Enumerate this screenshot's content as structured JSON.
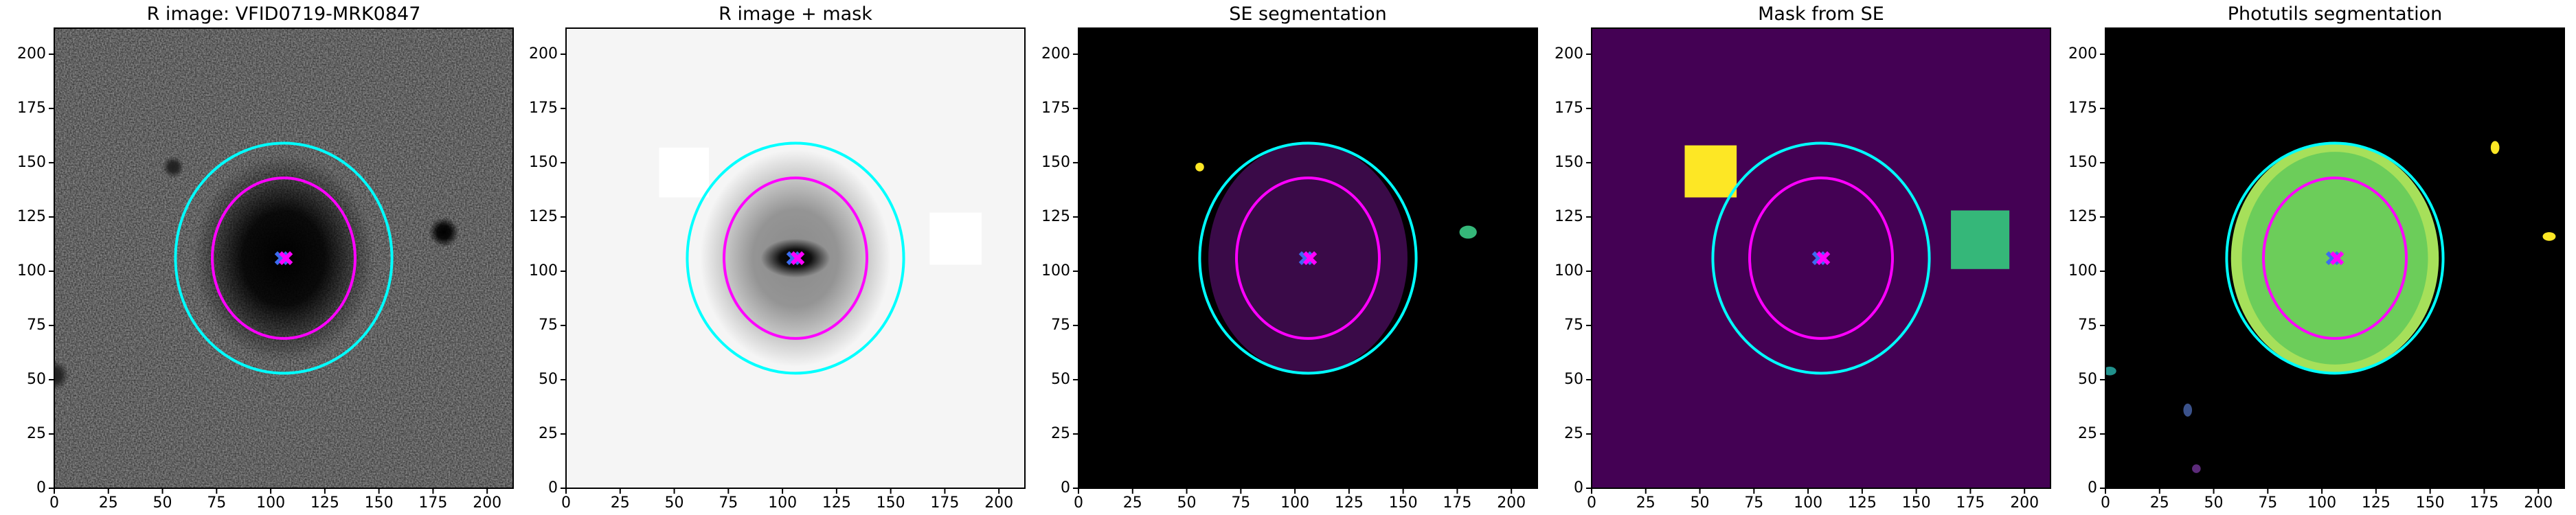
{
  "chart_data": [
    {
      "type": "image",
      "title": "R image: VFID0719-MRK0847",
      "background": "#8c8c8c",
      "noise": true,
      "xlim": [
        0,
        212
      ],
      "ylim": [
        0,
        212
      ],
      "xticks": [
        0,
        25,
        50,
        75,
        100,
        125,
        150,
        175,
        200
      ],
      "yticks": [
        0,
        25,
        50,
        75,
        100,
        125,
        150,
        175,
        200
      ],
      "regions": [
        {
          "shape": "ellipse",
          "soft": true,
          "color": "#000000",
          "cx": 106,
          "cy": 106,
          "rx": 42,
          "ry": 48
        },
        {
          "shape": "ellipse",
          "soft": true,
          "color": "#000000",
          "cx": 180,
          "cy": 118,
          "rx": 7,
          "ry": 7
        },
        {
          "shape": "ellipse",
          "soft": true,
          "color": "#202020",
          "cx": 55,
          "cy": 148,
          "rx": 5,
          "ry": 5
        },
        {
          "shape": "ellipse",
          "soft": true,
          "color": "#202020",
          "cx": 0,
          "cy": 52,
          "rx": 7,
          "ry": 7
        }
      ],
      "ellipses": [
        {
          "color": "#00ffff",
          "cx": 106,
          "cy": 106,
          "rx": 50,
          "ry": 53
        },
        {
          "color": "#ff00ff",
          "cx": 106,
          "cy": 106,
          "rx": 33,
          "ry": 37
        }
      ],
      "markers": [
        {
          "color": "#3b6cf0",
          "x": 105,
          "y": 106
        },
        {
          "color": "#ff00ff",
          "x": 107,
          "y": 106
        }
      ]
    },
    {
      "type": "image",
      "title": "R image + mask",
      "background": "#f5f5f5",
      "noise": false,
      "xlim": [
        0,
        212
      ],
      "ylim": [
        0,
        212
      ],
      "xticks": [
        0,
        25,
        50,
        75,
        100,
        125,
        150,
        175,
        200
      ],
      "yticks": [
        0,
        25,
        50,
        75,
        100,
        125,
        150,
        175,
        200
      ],
      "regions": [
        {
          "shape": "ellipse",
          "soft": true,
          "color": "#8a8a8a",
          "cx": 106,
          "cy": 106,
          "rx": 44,
          "ry": 50
        },
        {
          "shape": "ellipse",
          "soft": true,
          "color": "#000000",
          "cx": 106,
          "cy": 106,
          "rx": 16,
          "ry": 9
        },
        {
          "shape": "rect",
          "soft": false,
          "color": "#ffffff",
          "x0": 43,
          "x1": 66,
          "y0": 134,
          "y1": 157
        },
        {
          "shape": "rect",
          "soft": false,
          "color": "#ffffff",
          "x0": 168,
          "x1": 192,
          "y0": 103,
          "y1": 127
        }
      ],
      "ellipses": [
        {
          "color": "#00ffff",
          "cx": 106,
          "cy": 106,
          "rx": 50,
          "ry": 53
        },
        {
          "color": "#ff00ff",
          "cx": 106,
          "cy": 106,
          "rx": 33,
          "ry": 37
        }
      ],
      "markers": [
        {
          "color": "#3b6cf0",
          "x": 105,
          "y": 106
        },
        {
          "color": "#ff00ff",
          "x": 107,
          "y": 106
        }
      ]
    },
    {
      "type": "image",
      "title": "SE segmentation",
      "background": "#000000",
      "noise": false,
      "xlim": [
        0,
        212
      ],
      "ylim": [
        0,
        212
      ],
      "xticks": [
        0,
        25,
        50,
        75,
        100,
        125,
        150,
        175,
        200
      ],
      "yticks": [
        0,
        25,
        50,
        75,
        100,
        125,
        150,
        175,
        200
      ],
      "regions": [
        {
          "shape": "ellipse",
          "soft": false,
          "color": "#3a0a48",
          "cx": 106,
          "cy": 106,
          "rx": 46,
          "ry": 53
        },
        {
          "shape": "ellipse",
          "soft": false,
          "color": "#fde725",
          "cx": 56,
          "cy": 148,
          "rx": 2,
          "ry": 2
        },
        {
          "shape": "ellipse",
          "soft": false,
          "color": "#35b779",
          "cx": 180,
          "cy": 118,
          "rx": 4,
          "ry": 3
        }
      ],
      "ellipses": [
        {
          "color": "#00ffff",
          "cx": 106,
          "cy": 106,
          "rx": 50,
          "ry": 53
        },
        {
          "color": "#ff00ff",
          "cx": 106,
          "cy": 106,
          "rx": 33,
          "ry": 37
        }
      ],
      "markers": [
        {
          "color": "#3b6cf0",
          "x": 105,
          "y": 106
        },
        {
          "color": "#ff00ff",
          "x": 107,
          "y": 106
        }
      ]
    },
    {
      "type": "image",
      "title": "Mask from SE",
      "background": "#440154",
      "noise": false,
      "xlim": [
        0,
        212
      ],
      "ylim": [
        0,
        212
      ],
      "xticks": [
        0,
        25,
        50,
        75,
        100,
        125,
        150,
        175,
        200
      ],
      "yticks": [
        0,
        25,
        50,
        75,
        100,
        125,
        150,
        175,
        200
      ],
      "regions": [
        {
          "shape": "rect",
          "soft": false,
          "color": "#fde725",
          "x0": 43,
          "x1": 67,
          "y0": 134,
          "y1": 158
        },
        {
          "shape": "rect",
          "soft": false,
          "color": "#35b779",
          "x0": 166,
          "x1": 193,
          "y0": 101,
          "y1": 128
        }
      ],
      "ellipses": [
        {
          "color": "#00ffff",
          "cx": 106,
          "cy": 106,
          "rx": 50,
          "ry": 53
        },
        {
          "color": "#ff00ff",
          "cx": 106,
          "cy": 106,
          "rx": 33,
          "ry": 37
        }
      ],
      "markers": [
        {
          "color": "#3b6cf0",
          "x": 105,
          "y": 106
        },
        {
          "color": "#ff00ff",
          "x": 107,
          "y": 106
        }
      ]
    },
    {
      "type": "image",
      "title": "Photutils segmentation",
      "background": "#000000",
      "noise": false,
      "xlim": [
        0,
        212
      ],
      "ylim": [
        0,
        212
      ],
      "xticks": [
        0,
        25,
        50,
        75,
        100,
        125,
        150,
        175,
        200
      ],
      "yticks": [
        0,
        25,
        50,
        75,
        100,
        125,
        150,
        175,
        200
      ],
      "regions": [
        {
          "shape": "ellipse",
          "soft": false,
          "color": "#a6e05a",
          "cx": 106,
          "cy": 106,
          "rx": 48,
          "ry": 53
        },
        {
          "shape": "ellipse",
          "soft": false,
          "color": "#6ccd5a",
          "cx": 106,
          "cy": 106,
          "rx": 43,
          "ry": 49
        },
        {
          "shape": "ellipse",
          "soft": false,
          "color": "#fde725",
          "cx": 180,
          "cy": 157,
          "rx": 2,
          "ry": 3
        },
        {
          "shape": "ellipse",
          "soft": false,
          "color": "#fde725",
          "cx": 205,
          "cy": 116,
          "rx": 3,
          "ry": 2
        },
        {
          "shape": "ellipse",
          "soft": false,
          "color": "#21918c",
          "cx": 2,
          "cy": 54,
          "rx": 3,
          "ry": 2
        },
        {
          "shape": "ellipse",
          "soft": false,
          "color": "#3b528b",
          "cx": 38,
          "cy": 36,
          "rx": 2,
          "ry": 3
        },
        {
          "shape": "ellipse",
          "soft": false,
          "color": "#5c2b7a",
          "cx": 42,
          "cy": 9,
          "rx": 2,
          "ry": 2
        }
      ],
      "ellipses": [
        {
          "color": "#00ffff",
          "cx": 106,
          "cy": 106,
          "rx": 50,
          "ry": 53
        },
        {
          "color": "#ff00ff",
          "cx": 106,
          "cy": 106,
          "rx": 33,
          "ry": 37
        }
      ],
      "markers": [
        {
          "color": "#3b6cf0",
          "x": 105,
          "y": 106
        },
        {
          "color": "#ff00ff",
          "x": 107,
          "y": 106
        }
      ]
    }
  ]
}
